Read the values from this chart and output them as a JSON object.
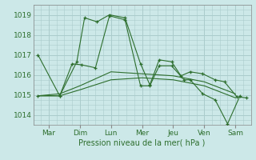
{
  "title": "",
  "xlabel": "Pression niveau de la mer( hPa )",
  "bg_color": "#cce8e8",
  "grid_color": "#aacccc",
  "line_color": "#2d6e2d",
  "xlim": [
    0,
    7
  ],
  "ylim": [
    1013.5,
    1019.5
  ],
  "yticks": [
    1014,
    1015,
    1016,
    1017,
    1018,
    1019
  ],
  "xtick_labels": [
    "Mar",
    "Dim",
    "Lun",
    "Mer",
    "Jeu",
    "Ven",
    "Sam"
  ],
  "xtick_positions": [
    0.5,
    1.5,
    2.5,
    3.5,
    4.5,
    5.5,
    6.5
  ],
  "series": [
    {
      "x": [
        0.15,
        0.85,
        1.4,
        1.65,
        2.05,
        2.45,
        2.95,
        3.45,
        3.75,
        4.05,
        4.45,
        4.75,
        5.05,
        5.45,
        5.85,
        6.15,
        6.55,
        6.85
      ],
      "y": [
        1017.0,
        1014.95,
        1016.65,
        1018.85,
        1018.65,
        1019.0,
        1018.85,
        1016.55,
        1015.5,
        1016.75,
        1016.65,
        1015.95,
        1016.15,
        1016.05,
        1015.75,
        1015.65,
        1014.9,
        1014.85
      ],
      "marker": "+"
    },
    {
      "x": [
        0.15,
        0.85,
        1.25,
        1.55,
        2.0,
        2.45,
        2.95,
        3.45,
        3.75,
        4.05,
        4.45,
        4.85,
        5.05,
        5.45,
        5.85,
        6.25,
        6.65
      ],
      "y": [
        1014.95,
        1014.95,
        1016.55,
        1016.5,
        1016.35,
        1018.95,
        1018.75,
        1015.45,
        1015.45,
        1016.45,
        1016.45,
        1015.75,
        1015.75,
        1015.05,
        1014.75,
        1013.55,
        1014.95
      ],
      "marker": "+"
    },
    {
      "x": [
        0.15,
        0.85,
        1.5,
        2.5,
        3.5,
        4.5,
        5.5,
        6.5
      ],
      "y": [
        1014.95,
        1014.95,
        1015.25,
        1015.75,
        1015.85,
        1015.75,
        1015.45,
        1014.85
      ],
      "marker": null
    },
    {
      "x": [
        0.15,
        0.85,
        1.5,
        2.5,
        3.5,
        4.5,
        5.5,
        6.5
      ],
      "y": [
        1014.95,
        1015.05,
        1015.45,
        1016.15,
        1016.05,
        1015.95,
        1015.65,
        1015.05
      ],
      "marker": null
    }
  ]
}
